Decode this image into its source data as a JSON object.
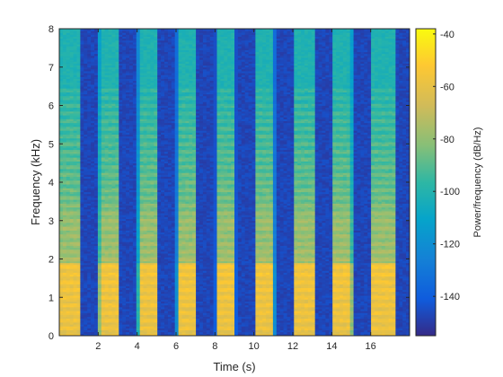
{
  "chart_data": {
    "type": "heatmap",
    "title": "",
    "xlabel": "Time (s)",
    "ylabel": "Frequency (kHz)",
    "xlim": [
      0,
      18
    ],
    "ylim": [
      0,
      8
    ],
    "x_ticks": [
      2,
      4,
      6,
      8,
      10,
      12,
      14,
      16
    ],
    "y_ticks": [
      0,
      1,
      2,
      3,
      4,
      5,
      6,
      7,
      8
    ],
    "colorbar": {
      "label": "Power/frequency (dB/Hz)",
      "range": [
        -155,
        -38
      ],
      "ticks": [
        -40,
        -60,
        -80,
        -100,
        -120,
        -140
      ],
      "colormap": "parula"
    },
    "segments": [
      {
        "start": 0.0,
        "end": 1.1
      },
      {
        "start": 2.0,
        "end": 3.1
      },
      {
        "start": 4.0,
        "end": 5.1
      },
      {
        "start": 6.0,
        "end": 7.1
      },
      {
        "start": 8.0,
        "end": 9.1
      },
      {
        "start": 10.0,
        "end": 11.1
      },
      {
        "start": 12.0,
        "end": 13.2
      },
      {
        "start": 14.0,
        "end": 15.1
      },
      {
        "start": 16.0,
        "end": 17.3
      }
    ],
    "silence_level": -150,
    "harmonic_spacing_khz": 0.2
  }
}
